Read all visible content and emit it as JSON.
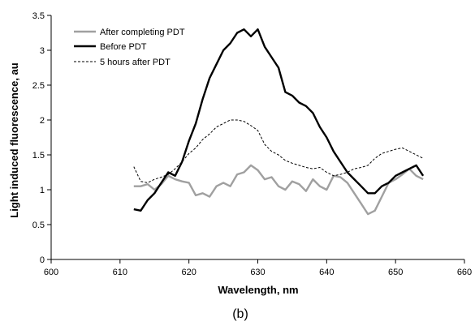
{
  "chart_data": {
    "type": "line",
    "xlabel": "Wavelength, nm",
    "ylabel": "Light induced fluorescence, au",
    "xlim": [
      600,
      660
    ],
    "ylim": [
      0,
      3.5
    ],
    "xticks": [
      "600",
      "610",
      "620",
      "630",
      "640",
      "650",
      "660"
    ],
    "yticks": [
      "0",
      "0.5",
      "1",
      "1.5",
      "2",
      "2.5",
      "3",
      "3.5"
    ],
    "grid": false,
    "legend_position": "top-left",
    "caption": "(b)",
    "series": [
      {
        "name": "After completing PDT",
        "color": "#a0a0a0",
        "style": "solid",
        "x": [
          612,
          613,
          614,
          615,
          616,
          617,
          618,
          619,
          620,
          621,
          622,
          623,
          624,
          625,
          626,
          627,
          628,
          629,
          630,
          631,
          632,
          633,
          634,
          635,
          636,
          637,
          638,
          639,
          640,
          641,
          642,
          643,
          644,
          645,
          646,
          647,
          648,
          649,
          650,
          651,
          652,
          653,
          654
        ],
        "y": [
          1.05,
          1.05,
          1.08,
          1.0,
          1.08,
          1.2,
          1.15,
          1.12,
          1.1,
          0.92,
          0.95,
          0.9,
          1.05,
          1.1,
          1.05,
          1.22,
          1.25,
          1.35,
          1.28,
          1.15,
          1.18,
          1.05,
          1.0,
          1.12,
          1.08,
          0.98,
          1.15,
          1.05,
          1.0,
          1.2,
          1.18,
          1.1,
          0.95,
          0.8,
          0.65,
          0.7,
          0.9,
          1.1,
          1.15,
          1.22,
          1.3,
          1.2,
          1.15
        ]
      },
      {
        "name": "Before PDT",
        "color": "#000000",
        "style": "solid",
        "x": [
          612,
          613,
          614,
          615,
          616,
          617,
          618,
          619,
          620,
          621,
          622,
          623,
          624,
          625,
          626,
          627,
          628,
          629,
          630,
          631,
          632,
          633,
          634,
          635,
          636,
          637,
          638,
          639,
          640,
          641,
          642,
          643,
          644,
          645,
          646,
          647,
          648,
          649,
          650,
          651,
          652,
          653,
          654
        ],
        "y": [
          0.72,
          0.7,
          0.85,
          0.95,
          1.1,
          1.25,
          1.2,
          1.4,
          1.7,
          1.95,
          2.3,
          2.6,
          2.8,
          3.0,
          3.1,
          3.25,
          3.3,
          3.2,
          3.3,
          3.05,
          2.9,
          2.75,
          2.4,
          2.35,
          2.25,
          2.2,
          2.1,
          1.9,
          1.75,
          1.55,
          1.4,
          1.25,
          1.15,
          1.05,
          0.95,
          0.95,
          1.05,
          1.1,
          1.2,
          1.25,
          1.3,
          1.35,
          1.2
        ]
      },
      {
        "name": "5 hours after PDT",
        "color": "#000000",
        "style": "dashed",
        "x": [
          612,
          613,
          614,
          615,
          616,
          617,
          618,
          619,
          620,
          621,
          622,
          623,
          624,
          625,
          626,
          627,
          628,
          629,
          630,
          631,
          632,
          633,
          634,
          635,
          636,
          637,
          638,
          639,
          640,
          641,
          642,
          643,
          644,
          645,
          646,
          647,
          648,
          649,
          650,
          651,
          652,
          653,
          654
        ],
        "y": [
          1.33,
          1.12,
          1.1,
          1.15,
          1.18,
          1.22,
          1.3,
          1.4,
          1.52,
          1.6,
          1.72,
          1.8,
          1.9,
          1.95,
          2.0,
          2.0,
          1.98,
          1.92,
          1.85,
          1.65,
          1.55,
          1.5,
          1.42,
          1.38,
          1.35,
          1.32,
          1.3,
          1.32,
          1.25,
          1.2,
          1.22,
          1.25,
          1.3,
          1.32,
          1.35,
          1.45,
          1.52,
          1.55,
          1.58,
          1.6,
          1.55,
          1.5,
          1.45
        ]
      }
    ]
  }
}
